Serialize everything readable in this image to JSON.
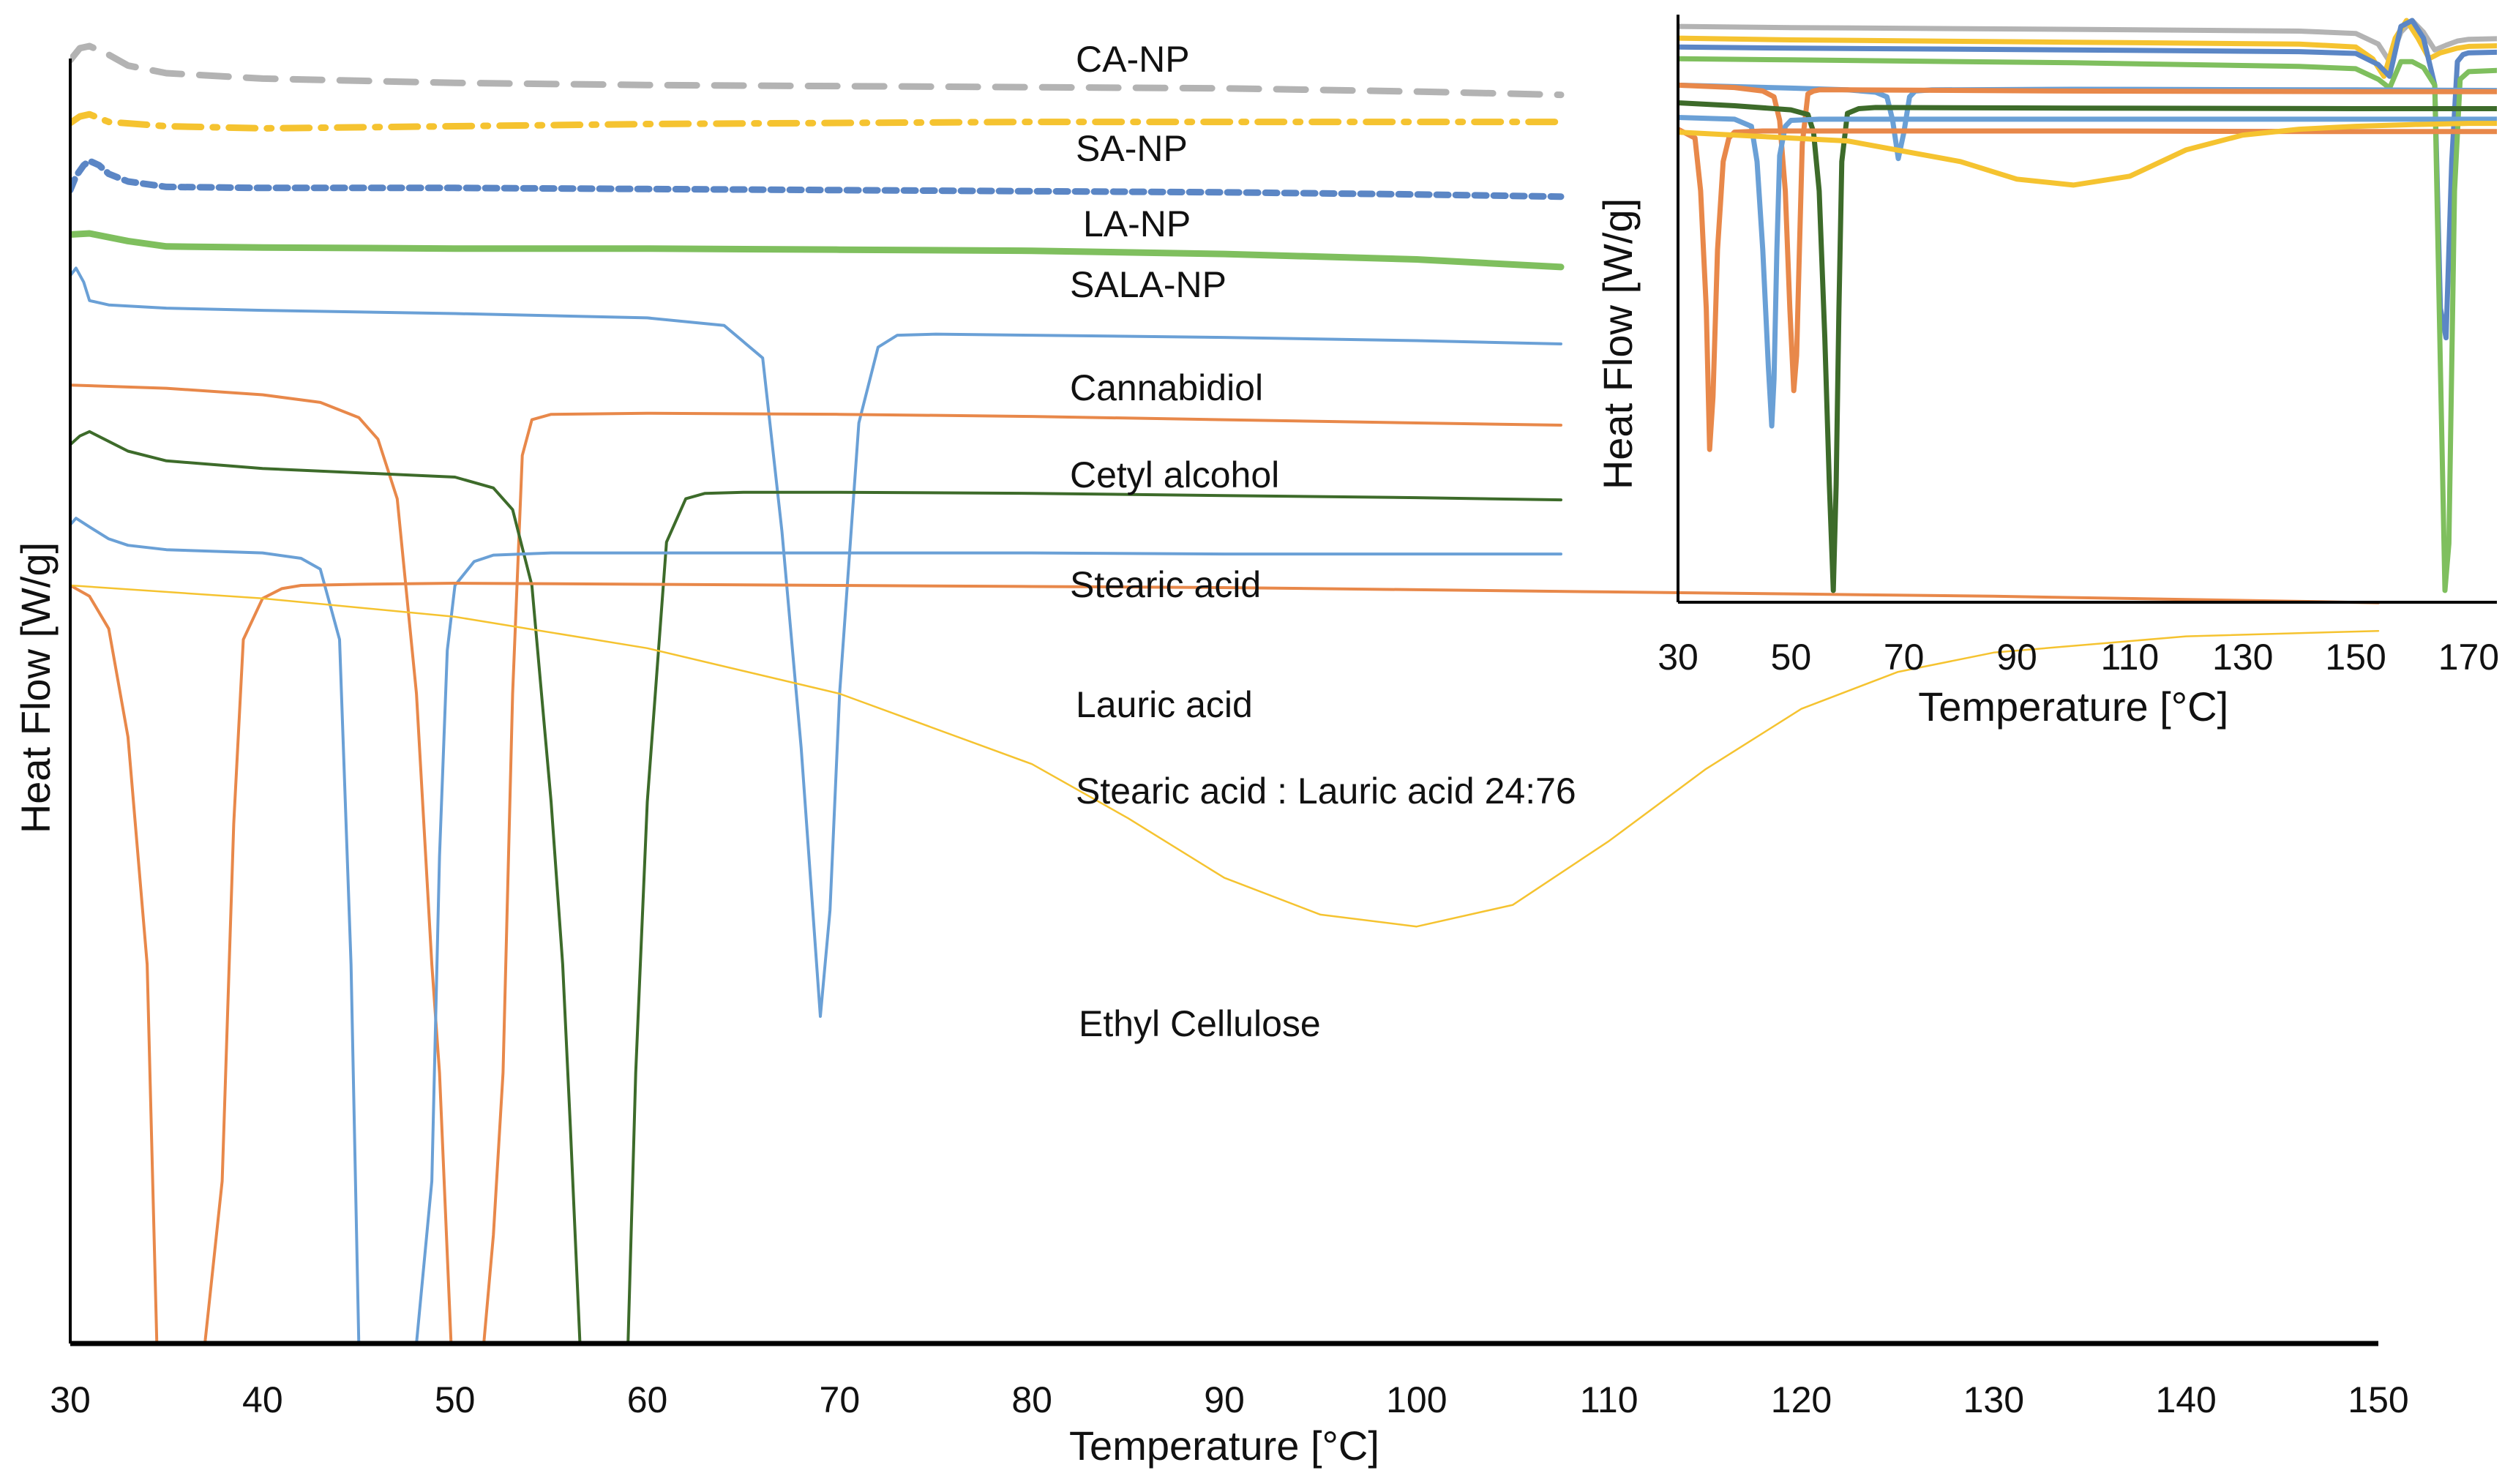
{
  "chart_data": [
    {
      "id": "main",
      "type": "line",
      "title": "",
      "xlabel": "Temperature [°C]",
      "ylabel": "Heat Flow [W/g]",
      "xlim": [
        30,
        150
      ],
      "x_ticks": [
        "30",
        "40",
        "50",
        "60",
        "70",
        "80",
        "90",
        "100",
        "110",
        "120",
        "130",
        "140",
        "150"
      ],
      "y_ticks_shown": false,
      "grid": false,
      "legend": "none (series labeled inline)",
      "series": [
        {
          "name": "CA-NP",
          "color": "#b3b3b3",
          "dash": "dash",
          "x": [
            30,
            30.5,
            31,
            32,
            33,
            35,
            40,
            50,
            60,
            70,
            80,
            90,
            100,
            107.5
          ],
          "y": [
            98.5,
            99.6,
            99.8,
            99.0,
            98.0,
            97.3,
            96.8,
            96.4,
            96.2,
            96.1,
            96.0,
            95.9,
            95.6,
            95.3
          ]
        },
        {
          "name": "SA-NP",
          "color": "#f5c330",
          "dash": "dashdot",
          "x": [
            30,
            30.5,
            31,
            32,
            35,
            40,
            50,
            60,
            70,
            80,
            90,
            100,
            107.5
          ],
          "y": [
            92.7,
            93.3,
            93.5,
            92.8,
            92.4,
            92.2,
            92.4,
            92.6,
            92.7,
            92.8,
            92.8,
            92.8,
            92.8
          ]
        },
        {
          "name": "LA-NP",
          "color": "#5b86c5",
          "dash": "short",
          "x": [
            30,
            30.3,
            30.7,
            31,
            31.5,
            32,
            33,
            35,
            40,
            50,
            60,
            70,
            80,
            90,
            100,
            107.5
          ],
          "y": [
            86.5,
            87.8,
            88.8,
            89.2,
            88.8,
            88.0,
            87.3,
            86.8,
            86.7,
            86.7,
            86.6,
            86.5,
            86.4,
            86.3,
            86.1,
            85.9
          ]
        },
        {
          "name": "SALA-NP",
          "color": "#7fbf5e",
          "dash": "solid",
          "x": [
            30,
            31,
            33,
            35,
            40,
            50,
            60,
            70,
            80,
            90,
            100,
            107.5
          ],
          "y": [
            82.4,
            82.5,
            81.8,
            81.3,
            81.2,
            81.1,
            81.1,
            81.0,
            80.9,
            80.6,
            80.1,
            79.4
          ]
        },
        {
          "name": "Cannabidiol",
          "color": "#6aa0d6",
          "dash": "solid",
          "x": [
            30,
            30.3,
            30.7,
            31,
            32,
            35,
            40,
            50,
            60,
            64,
            66,
            67,
            68,
            69,
            69.5,
            70,
            71,
            72,
            73,
            75,
            80,
            90,
            100,
            107.5
          ],
          "y": [
            78.6,
            79.3,
            78.0,
            76.3,
            75.9,
            75.6,
            75.4,
            75.1,
            74.7,
            74.0,
            71.0,
            55.0,
            35.0,
            10.2,
            20.0,
            40.0,
            65.0,
            72.0,
            73.1,
            73.2,
            73.1,
            72.9,
            72.6,
            72.3
          ]
        },
        {
          "name": "Cetyl alcohol",
          "color": "#e8884a",
          "dash": "solid",
          "x": [
            30,
            35,
            40,
            43,
            45,
            46,
            47,
            48,
            48.8,
            49.2,
            49.8,
            50.5,
            51,
            51.5,
            52,
            52.5,
            53,
            53.5,
            54,
            55,
            60,
            70,
            80,
            90,
            100,
            107.5
          ],
          "y": [
            68.5,
            68.2,
            67.6,
            66.9,
            65.5,
            63.5,
            58.0,
            40.0,
            15.0,
            5.0,
            -20.0,
            -20.0,
            -20.0,
            -20.0,
            -10.0,
            5.0,
            40.0,
            62.0,
            65.3,
            65.8,
            65.9,
            65.8,
            65.6,
            65.3,
            65.0,
            64.8
          ]
        },
        {
          "name": "Stearic acid",
          "color": "#3d6b2a",
          "dash": "solid",
          "x": [
            30,
            30.5,
            31,
            32,
            33,
            35,
            40,
            50,
            52,
            53,
            54,
            55,
            55.6,
            56,
            56.5,
            57,
            58,
            59,
            59.4,
            60,
            61,
            62,
            63,
            65,
            70,
            80,
            90,
            100,
            107.5
          ],
          "y": [
            63.0,
            63.8,
            64.2,
            63.3,
            62.4,
            61.5,
            60.8,
            60.0,
            59.0,
            57.0,
            50.0,
            30.0,
            15.0,
            0.0,
            -20.0,
            -20.0,
            -20.0,
            -20.0,
            5.0,
            30.0,
            54.0,
            58.0,
            58.5,
            58.6,
            58.6,
            58.5,
            58.3,
            58.1,
            57.9
          ]
        },
        {
          "name": "Lauric acid",
          "color": "#6aa0d6",
          "dash": "solid",
          "x": [
            30,
            30.3,
            31,
            32,
            33,
            35,
            40,
            42,
            43,
            44,
            44.6,
            45,
            45.5,
            46,
            47,
            48,
            48.8,
            49.2,
            49.6,
            50,
            51,
            52,
            55,
            60,
            70,
            80,
            90,
            100,
            107.5
          ],
          "y": [
            55.6,
            56.2,
            55.4,
            54.3,
            53.7,
            53.3,
            53.0,
            52.5,
            51.5,
            45.0,
            15.0,
            -20.0,
            -20.0,
            -20.0,
            -20.0,
            -20.0,
            -5.0,
            25.0,
            44.0,
            50.0,
            52.2,
            52.8,
            53.0,
            53.0,
            53.0,
            53.0,
            52.9,
            52.9,
            52.9
          ]
        },
        {
          "name": "Stearic acid : Lauric acid   24:76",
          "color": "#e8884a",
          "dash": "solid",
          "x": [
            30,
            31,
            32,
            33,
            34,
            34.5,
            35,
            36,
            37,
            37.9,
            38.5,
            39,
            40,
            41,
            42,
            45,
            50,
            60,
            70,
            80,
            90,
            100,
            110,
            120,
            130,
            140,
            150
          ],
          "y": [
            50.0,
            49.0,
            46.0,
            36.0,
            15.0,
            -20.0,
            -20.0,
            -20.0,
            -20.0,
            -5.0,
            28.0,
            45.0,
            48.8,
            49.7,
            50.0,
            50.1,
            50.2,
            50.1,
            50.0,
            49.9,
            49.8,
            49.6,
            49.4,
            49.2,
            49.0,
            48.7,
            48.4
          ]
        },
        {
          "name": "Ethyl Cellulose",
          "color": "#f5c330",
          "dash": "solid",
          "thin": true,
          "x": [
            30,
            40,
            50,
            60,
            70,
            80,
            85,
            90,
            95,
            100,
            105,
            110,
            115,
            120,
            125,
            130,
            140,
            150
          ],
          "y": [
            50.0,
            48.8,
            47.1,
            44.2,
            40.0,
            33.5,
            28.5,
            23.0,
            19.6,
            18.5,
            20.5,
            26.4,
            33.0,
            38.6,
            42.0,
            43.8,
            45.3,
            45.8
          ]
        }
      ]
    },
    {
      "id": "inset",
      "type": "line",
      "title": "",
      "xlabel": "Temperature [°C]",
      "ylabel": "Heat Flow [W/g]",
      "xlim": [
        30,
        175
      ],
      "x_ticks": [
        "30",
        "50",
        "70",
        "90",
        "110",
        "130",
        "150",
        "170"
      ],
      "y_ticks_shown": false,
      "grid": false,
      "series": [
        {
          "name": "CA-NP",
          "color": "#b3b3b3",
          "x": [
            30,
            50,
            100,
            140,
            150,
            154,
            156,
            158,
            160,
            162,
            164,
            166,
            168,
            170,
            175
          ],
          "y": [
            98.0,
            97.8,
            97.5,
            97.2,
            96.8,
            95.0,
            92.0,
            97.0,
            99.0,
            97.0,
            94.0,
            94.8,
            95.5,
            95.8,
            95.9
          ]
        },
        {
          "name": "SA-NP",
          "color": "#f5c330",
          "x": [
            30,
            50,
            100,
            140,
            150,
            153,
            155,
            157,
            159,
            161,
            163,
            165,
            168,
            170,
            175
          ],
          "y": [
            96.0,
            95.7,
            95.3,
            95.0,
            94.5,
            92.5,
            89.5,
            96.0,
            99.0,
            96.0,
            92.5,
            93.5,
            94.3,
            94.6,
            94.7
          ]
        },
        {
          "name": "LA-NP",
          "color": "#5b86c5",
          "x": [
            30,
            50,
            100,
            140,
            150,
            154,
            156,
            158,
            160,
            162,
            164,
            165,
            166,
            167,
            168,
            169,
            170,
            175
          ],
          "y": [
            94.5,
            94.3,
            94.0,
            93.7,
            93.4,
            91.5,
            89.5,
            98.0,
            99.0,
            96.0,
            88.0,
            50.0,
            45.0,
            75.0,
            92.0,
            93.2,
            93.5,
            93.6
          ]
        },
        {
          "name": "SALA-NP",
          "color": "#7fbf5e",
          "x": [
            30,
            50,
            100,
            140,
            150,
            154,
            156,
            158,
            160,
            162,
            164,
            165,
            165.8,
            166.5,
            167.5,
            168.5,
            170,
            175
          ],
          "y": [
            92.5,
            92.3,
            91.8,
            91.2,
            90.8,
            89.0,
            87.5,
            92.0,
            92.0,
            91.0,
            88.0,
            40.0,
            2.0,
            10.0,
            70.0,
            89.0,
            90.3,
            90.5
          ]
        },
        {
          "name": "Cannabidiol",
          "color": "#6aa0d6",
          "x": [
            30,
            50,
            60,
            65,
            67,
            68,
            69,
            70,
            71,
            72,
            75,
            100,
            150,
            175
          ],
          "y": [
            88.0,
            87.5,
            87.2,
            86.8,
            86.0,
            82.0,
            75.5,
            80.0,
            86.0,
            87.0,
            87.2,
            87.3,
            87.2,
            87.1
          ]
        },
        {
          "name": "Cetyl alcohol",
          "color": "#e8884a",
          "x": [
            30,
            40,
            45,
            47,
            48,
            49,
            49.8,
            50.5,
            51,
            51.5,
            52,
            53,
            54,
            55,
            60,
            100,
            150,
            175
          ],
          "y": [
            88.0,
            87.6,
            87.0,
            86.0,
            82.0,
            70.0,
            50.0,
            36.0,
            42.0,
            60.0,
            78.0,
            86.5,
            87.0,
            87.2,
            87.2,
            87.0,
            86.9,
            86.9
          ]
        },
        {
          "name": "Stearic acid",
          "color": "#3d6b2a",
          "x": [
            30,
            40,
            50,
            53,
            54,
            55,
            56,
            56.8,
            57.5,
            58,
            58.5,
            59,
            60,
            62,
            65,
            100,
            150,
            175
          ],
          "y": [
            85.0,
            84.5,
            83.8,
            83.0,
            80.0,
            70.0,
            45.0,
            20.0,
            2.0,
            20.0,
            50.0,
            75.0,
            83.2,
            84.0,
            84.2,
            84.1,
            84.0,
            84.0
          ]
        },
        {
          "name": "Lauric acid",
          "color": "#6aa0d6",
          "x": [
            30,
            40,
            43,
            44,
            45,
            46,
            46.6,
            47,
            47.5,
            48,
            49,
            50,
            55,
            100,
            150,
            175
          ],
          "y": [
            82.5,
            82.2,
            81.0,
            75.0,
            60.0,
            40.0,
            30.0,
            38.0,
            60.0,
            76.0,
            81.0,
            82.0,
            82.2,
            82.2,
            82.2,
            82.2
          ]
        },
        {
          "name": "Stearic acid : Lauric acid   24:76",
          "color": "#e8884a",
          "x": [
            30,
            33,
            34,
            35,
            35.6,
            36.2,
            37,
            38,
            39,
            40,
            45,
            100,
            150,
            175
          ],
          "y": [
            80.5,
            79.0,
            70.0,
            50.0,
            26.0,
            35.0,
            60.0,
            75.0,
            79.0,
            80.0,
            80.2,
            80.2,
            80.1,
            80.1
          ]
        },
        {
          "name": "Ethyl Cellulose",
          "color": "#f5c330",
          "x": [
            30,
            40,
            60,
            80,
            90,
            100,
            110,
            120,
            130,
            140,
            150,
            160,
            170,
            175
          ],
          "y": [
            80.0,
            79.5,
            78.5,
            75.0,
            72.0,
            71.0,
            72.5,
            77.0,
            79.5,
            80.5,
            81.0,
            81.3,
            81.5,
            81.5
          ]
        }
      ]
    }
  ],
  "series_labels": [
    "CA-NP",
    "SA-NP",
    "LA-NP",
    "SALA-NP",
    "Cannabidiol",
    "Cetyl alcohol",
    "Stearic acid",
    "Lauric acid",
    "Stearic acid : Lauric acid   24:76",
    "Ethyl Cellulose"
  ]
}
